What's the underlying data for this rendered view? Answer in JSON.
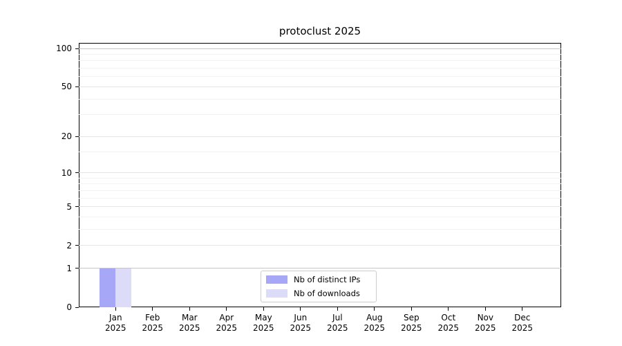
{
  "figure_title": "protoclust 2025",
  "chart_data": {
    "type": "bar",
    "title": "protoclust 2025",
    "xlabel": "",
    "ylabel": "",
    "x_tick_months": [
      "Jan",
      "Feb",
      "Mar",
      "Apr",
      "May",
      "Jun",
      "Jul",
      "Aug",
      "Sep",
      "Oct",
      "Nov",
      "Dec"
    ],
    "x_tick_year": "2025",
    "series": [
      {
        "name": "Nb of distinct IPs",
        "color": "#a7a7f7",
        "values": [
          1,
          0,
          0,
          0,
          0,
          0,
          0,
          0,
          0,
          0,
          0,
          0
        ]
      },
      {
        "name": "Nb of downloads",
        "color": "#dcdcf9",
        "values": [
          1,
          0,
          0,
          0,
          0,
          0,
          0,
          0,
          0,
          0,
          0,
          0
        ]
      }
    ],
    "y_scale": "log1p",
    "y_ticks": [
      0,
      1,
      2,
      5,
      10,
      20,
      50,
      100
    ],
    "y_minor_ticks": [
      3,
      4,
      6,
      7,
      8,
      9,
      15,
      30,
      40,
      60,
      70,
      80,
      90
    ],
    "ylim": [
      0,
      110.5
    ],
    "grid": true,
    "legend_position": "lower center"
  }
}
